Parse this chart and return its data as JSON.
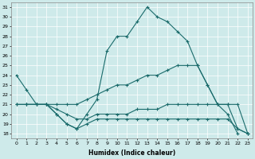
{
  "xlabel": "Humidex (Indice chaleur)",
  "xlim": [
    -0.5,
    23.5
  ],
  "ylim": [
    17.5,
    31.5
  ],
  "yticks": [
    18,
    19,
    20,
    21,
    22,
    23,
    24,
    25,
    26,
    27,
    28,
    29,
    30,
    31
  ],
  "xticks": [
    0,
    1,
    2,
    3,
    4,
    5,
    6,
    7,
    8,
    9,
    10,
    11,
    12,
    13,
    14,
    15,
    16,
    17,
    18,
    19,
    20,
    21,
    22,
    23
  ],
  "bg_color": "#ceeaea",
  "grid_color": "#b0d4d4",
  "line_color": "#1a6b6b",
  "line1_y": [
    24,
    22.5,
    21,
    21,
    20,
    19,
    18.5,
    20,
    21.5,
    26.5,
    28,
    28,
    29.5,
    31,
    30,
    29.5,
    28.5,
    27.5,
    25,
    23,
    21,
    20,
    18,
    null
  ],
  "line2_y": [
    null,
    null,
    null,
    null,
    null,
    null,
    null,
    null,
    null,
    null,
    null,
    null,
    null,
    null,
    null,
    null,
    null,
    25,
    null,
    null,
    null,
    null,
    null,
    null
  ],
  "line3_y": [
    21,
    21,
    21,
    21,
    21,
    21,
    21,
    21.5,
    22,
    22.5,
    23,
    23,
    23.5,
    24,
    24,
    24.5,
    25,
    25,
    25,
    23,
    21,
    21,
    21,
    18
  ],
  "line4_y": [
    21,
    21,
    21,
    21,
    20.5,
    20,
    19.5,
    19.5,
    20,
    20,
    20,
    20,
    20.5,
    20.5,
    20.5,
    21,
    21,
    21,
    21,
    21,
    21,
    21,
    18.5,
    18
  ],
  "line5_y": [
    null,
    21,
    21,
    21,
    20,
    19,
    18.5,
    19,
    19.5,
    19.5,
    19.5,
    19.5,
    19.5,
    19.5,
    19.5,
    19.5,
    19.5,
    19.5,
    19.5,
    19.5,
    19.5,
    19.5,
    18.5,
    18
  ]
}
